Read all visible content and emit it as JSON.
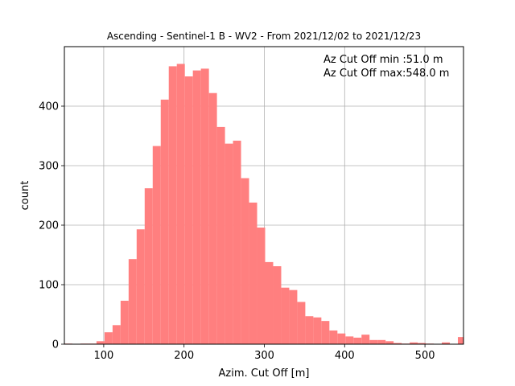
{
  "chart_data": {
    "type": "bar",
    "title": "Ascending - Sentinel-1 B - WV2 - From 2021/12/02 to 2021/12/23",
    "xlabel": "Azim. Cut Off [m]",
    "ylabel": "count",
    "xlim": [
      51,
      548
    ],
    "ylim": [
      0,
      500
    ],
    "x_ticks": [
      100,
      200,
      300,
      400,
      500
    ],
    "y_ticks": [
      0,
      100,
      200,
      300,
      400
    ],
    "grid": true,
    "bar_color": "#ff7f7f",
    "bin_width": 10,
    "bins_start": [
      51,
      61,
      71,
      81,
      91,
      101,
      111,
      121,
      131,
      141,
      151,
      161,
      171,
      181,
      191,
      201,
      211,
      221,
      231,
      241,
      251,
      261,
      271,
      281,
      291,
      301,
      311,
      321,
      331,
      341,
      351,
      361,
      371,
      381,
      391,
      401,
      411,
      421,
      431,
      441,
      451,
      461,
      471,
      481,
      491,
      501,
      511,
      521,
      531,
      541
    ],
    "values": [
      1,
      0,
      1,
      1,
      5,
      20,
      32,
      73,
      143,
      193,
      262,
      333,
      411,
      467,
      471,
      450,
      460,
      463,
      422,
      365,
      337,
      342,
      279,
      238,
      196,
      138,
      131,
      95,
      91,
      71,
      47,
      45,
      39,
      23,
      18,
      13,
      11,
      16,
      7,
      7,
      5,
      2,
      1,
      3,
      2,
      1,
      0,
      3,
      0,
      12
    ],
    "annotations": [
      "Az Cut Off min :51.0 m",
      "Az Cut Off max:548.0 m"
    ]
  }
}
